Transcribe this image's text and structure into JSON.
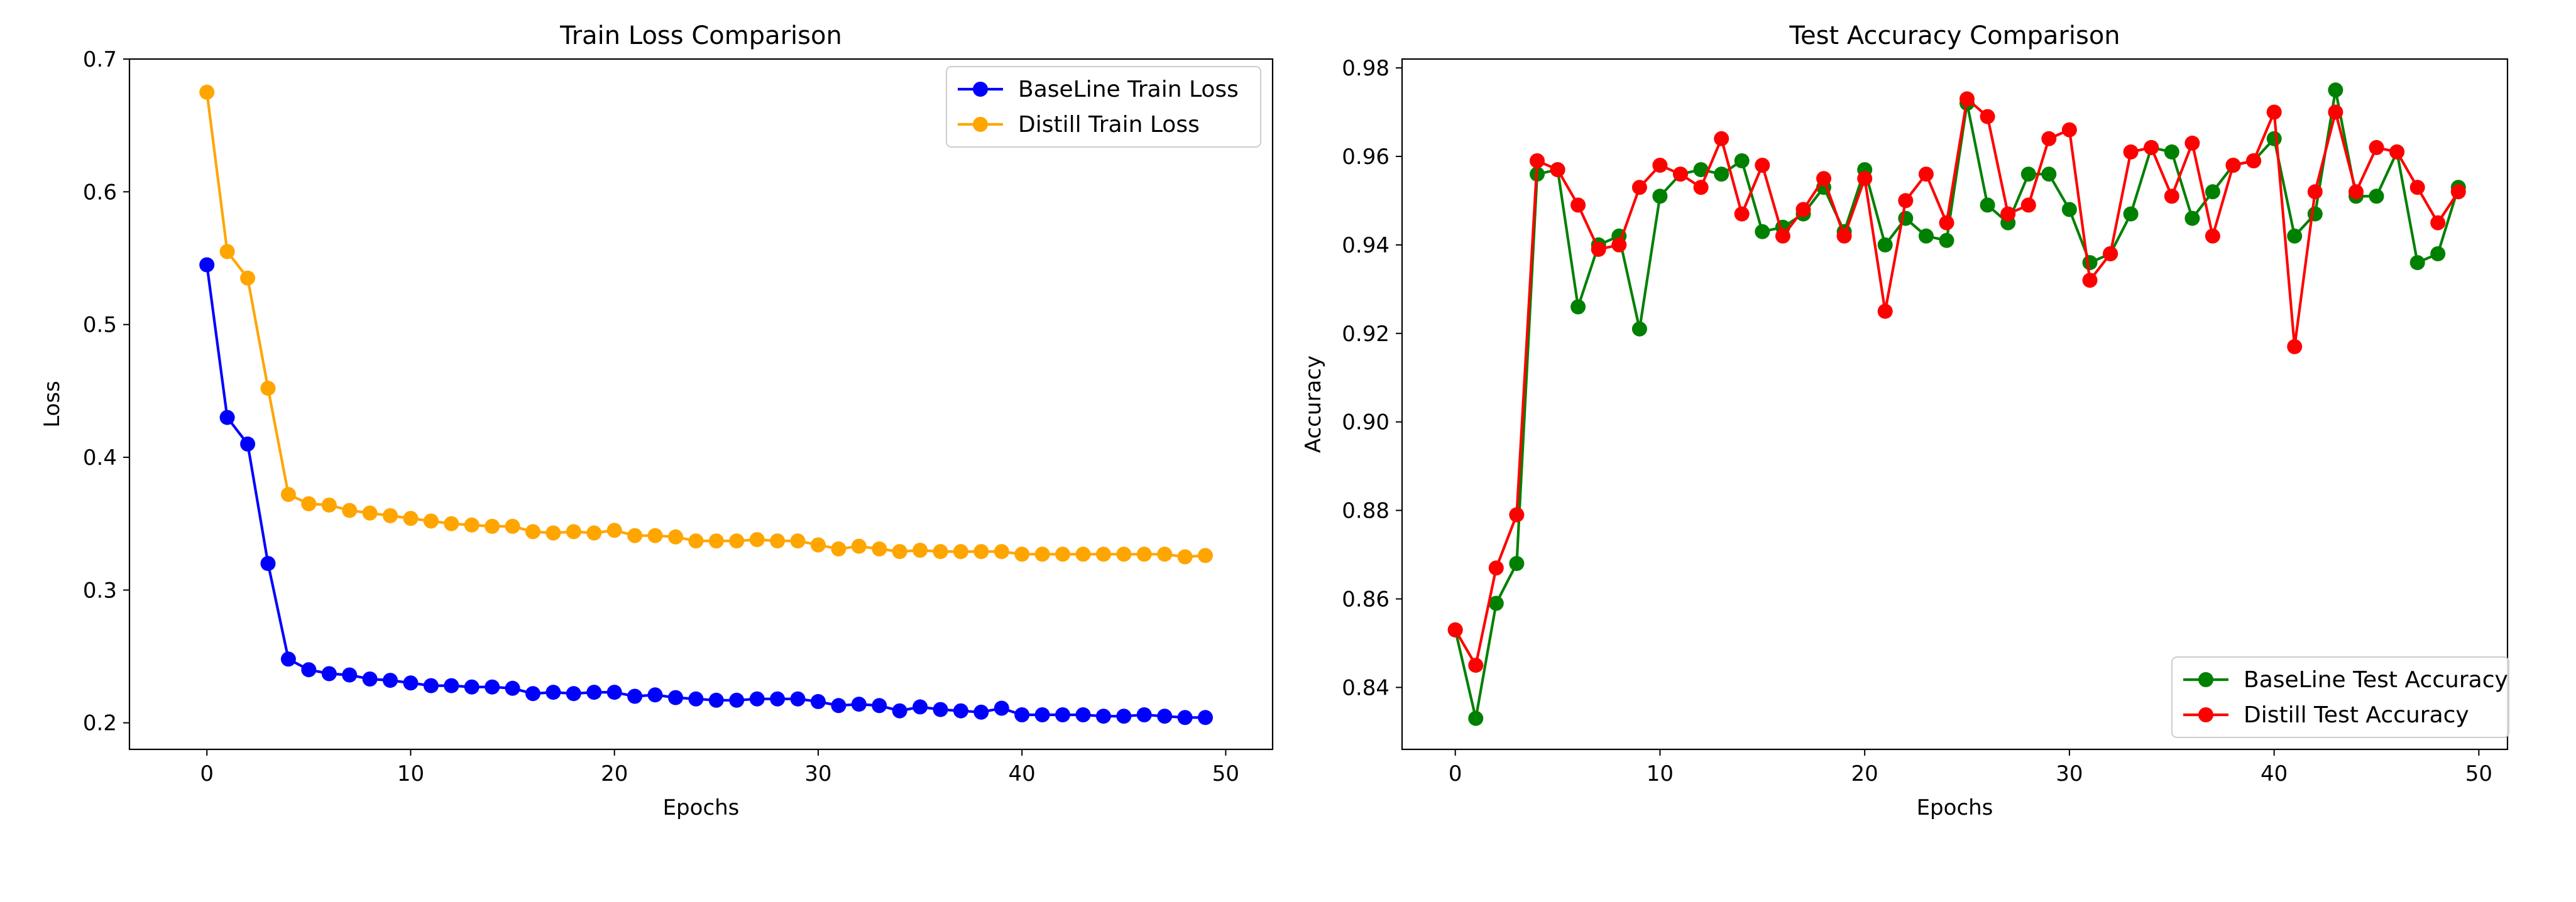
{
  "chart_data": [
    {
      "type": "line",
      "title": "Train Loss Comparison",
      "xlabel": "Epochs",
      "ylabel": "Loss",
      "xlim": [
        -3.8,
        52.3
      ],
      "ylim": [
        0.18,
        0.7
      ],
      "xticks": [
        0,
        10,
        20,
        30,
        40,
        50
      ],
      "yticks": [
        0.2,
        0.3,
        0.4,
        0.5,
        0.6,
        0.7
      ],
      "xtick_labels": [
        "0",
        "10",
        "20",
        "30",
        "40",
        "50"
      ],
      "ytick_labels": [
        "0.2",
        "0.3",
        "0.4",
        "0.5",
        "0.6",
        "0.7"
      ],
      "grid": false,
      "legend": "top-right",
      "x": [
        0,
        1,
        2,
        3,
        4,
        5,
        6,
        7,
        8,
        9,
        10,
        11,
        12,
        13,
        14,
        15,
        16,
        17,
        18,
        19,
        20,
        21,
        22,
        23,
        24,
        25,
        26,
        27,
        28,
        29,
        30,
        31,
        32,
        33,
        34,
        35,
        36,
        37,
        38,
        39,
        40,
        41,
        42,
        43,
        44,
        45,
        46,
        47,
        48,
        49
      ],
      "series": [
        {
          "name": "BaseLine Train Loss",
          "color": "#0000ff",
          "values": [
            0.545,
            0.43,
            0.41,
            0.32,
            0.248,
            0.24,
            0.237,
            0.236,
            0.233,
            0.232,
            0.23,
            0.228,
            0.228,
            0.227,
            0.227,
            0.226,
            0.222,
            0.223,
            0.222,
            0.223,
            0.223,
            0.22,
            0.221,
            0.219,
            0.218,
            0.217,
            0.217,
            0.218,
            0.218,
            0.218,
            0.216,
            0.213,
            0.214,
            0.213,
            0.209,
            0.212,
            0.21,
            0.209,
            0.208,
            0.211,
            0.206,
            0.206,
            0.206,
            0.206,
            0.205,
            0.205,
            0.206,
            0.205,
            0.204,
            0.204
          ]
        },
        {
          "name": "Distill Train Loss",
          "color": "#ffa500",
          "values": [
            0.675,
            0.555,
            0.535,
            0.452,
            0.372,
            0.365,
            0.364,
            0.36,
            0.358,
            0.356,
            0.354,
            0.352,
            0.35,
            0.349,
            0.348,
            0.348,
            0.344,
            0.343,
            0.344,
            0.343,
            0.345,
            0.341,
            0.341,
            0.34,
            0.337,
            0.337,
            0.337,
            0.338,
            0.337,
            0.337,
            0.334,
            0.331,
            0.333,
            0.331,
            0.329,
            0.33,
            0.329,
            0.329,
            0.329,
            0.329,
            0.327,
            0.327,
            0.327,
            0.327,
            0.327,
            0.327,
            0.327,
            0.327,
            0.325,
            0.326
          ]
        }
      ]
    },
    {
      "type": "line",
      "title": "Test Accuracy Comparison",
      "xlabel": "Epochs",
      "ylabel": "Accuracy",
      "xlim": [
        -2.6,
        51.4
      ],
      "ylim": [
        0.826,
        0.982
      ],
      "xticks": [
        0,
        10,
        20,
        30,
        40,
        50
      ],
      "yticks": [
        0.84,
        0.86,
        0.88,
        0.9,
        0.92,
        0.94,
        0.96,
        0.98
      ],
      "xtick_labels": [
        "0",
        "10",
        "20",
        "30",
        "40",
        "50"
      ],
      "ytick_labels": [
        "0.84",
        "0.86",
        "0.88",
        "0.90",
        "0.92",
        "0.94",
        "0.96",
        "0.98"
      ],
      "grid": false,
      "legend": "bottom-right",
      "x": [
        0,
        1,
        2,
        3,
        4,
        5,
        6,
        7,
        8,
        9,
        10,
        11,
        12,
        13,
        14,
        15,
        16,
        17,
        18,
        19,
        20,
        21,
        22,
        23,
        24,
        25,
        26,
        27,
        28,
        29,
        30,
        31,
        32,
        33,
        34,
        35,
        36,
        37,
        38,
        39,
        40,
        41,
        42,
        43,
        44,
        45,
        46,
        47,
        48,
        49
      ],
      "series": [
        {
          "name": "BaseLine Test Accuracy",
          "color": "#008000",
          "values": [
            0.853,
            0.833,
            0.859,
            0.868,
            0.956,
            0.957,
            0.926,
            0.94,
            0.942,
            0.921,
            0.951,
            0.956,
            0.957,
            0.956,
            0.959,
            0.943,
            0.944,
            0.947,
            0.953,
            0.943,
            0.957,
            0.94,
            0.946,
            0.942,
            0.941,
            0.972,
            0.949,
            0.945,
            0.956,
            0.956,
            0.948,
            0.936,
            0.938,
            0.947,
            0.962,
            0.961,
            0.946,
            0.952,
            0.958,
            0.959,
            0.964,
            0.942,
            0.947,
            0.975,
            0.951,
            0.951,
            0.961,
            0.936,
            0.938,
            0.953
          ]
        },
        {
          "name": "Distill Test Accuracy",
          "color": "#ff0000",
          "values": [
            0.853,
            0.845,
            0.867,
            0.879,
            0.959,
            0.957,
            0.949,
            0.939,
            0.94,
            0.953,
            0.958,
            0.956,
            0.953,
            0.964,
            0.947,
            0.958,
            0.942,
            0.948,
            0.955,
            0.942,
            0.955,
            0.925,
            0.95,
            0.956,
            0.945,
            0.973,
            0.969,
            0.947,
            0.949,
            0.964,
            0.966,
            0.932,
            0.938,
            0.961,
            0.962,
            0.951,
            0.963,
            0.942,
            0.958,
            0.959,
            0.97,
            0.917,
            0.952,
            0.97,
            0.952,
            0.962,
            0.961,
            0.953,
            0.945,
            0.952
          ]
        }
      ]
    }
  ]
}
